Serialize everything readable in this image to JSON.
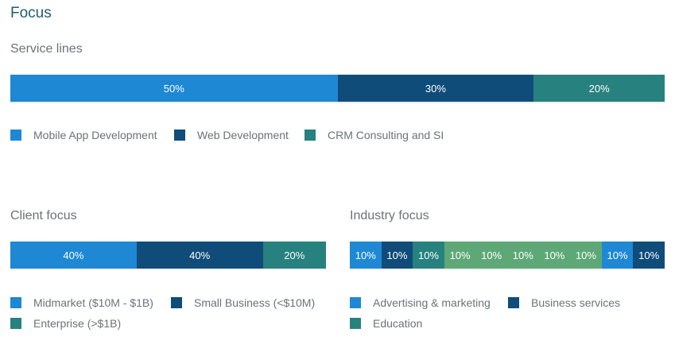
{
  "page": {
    "title": "Focus"
  },
  "colors": {
    "light_blue": "#1e88d4",
    "dark_blue": "#0f4c7a",
    "teal": "#27817e",
    "green": "#5ea877"
  },
  "service_lines": {
    "title": "Service lines",
    "segments": [
      {
        "label": "50%",
        "value": 50,
        "color": "#1e88d4"
      },
      {
        "label": "30%",
        "value": 30,
        "color": "#0f4c7a"
      },
      {
        "label": "20%",
        "value": 20,
        "color": "#27817e"
      }
    ],
    "legend": [
      {
        "label": "Mobile App Development",
        "color": "#1e88d4"
      },
      {
        "label": "Web Development",
        "color": "#0f4c7a"
      },
      {
        "label": "CRM Consulting and SI",
        "color": "#27817e"
      }
    ]
  },
  "client_focus": {
    "title": "Client focus",
    "segments": [
      {
        "label": "40%",
        "value": 40,
        "color": "#1e88d4"
      },
      {
        "label": "40%",
        "value": 40,
        "color": "#0f4c7a"
      },
      {
        "label": "20%",
        "value": 20,
        "color": "#27817e"
      }
    ],
    "legend": [
      {
        "label": "Midmarket ($10M - $1B)",
        "color": "#1e88d4"
      },
      {
        "label": "Small Business (<$10M)",
        "color": "#0f4c7a"
      },
      {
        "label": "Enterprise (>$1B)",
        "color": "#27817e"
      }
    ]
  },
  "industry_focus": {
    "title": "Industry focus",
    "segments": [
      {
        "label": "10%",
        "value": 10,
        "color": "#1e88d4"
      },
      {
        "label": "10%",
        "value": 10,
        "color": "#0f4c7a"
      },
      {
        "label": "10%",
        "value": 10,
        "color": "#27817e"
      },
      {
        "label": "10%",
        "value": 10,
        "color": "#5ea877"
      },
      {
        "label": "10%",
        "value": 10,
        "color": "#5ea877"
      },
      {
        "label": "10%",
        "value": 10,
        "color": "#5ea877"
      },
      {
        "label": "10%",
        "value": 10,
        "color": "#5ea877"
      },
      {
        "label": "10%",
        "value": 10,
        "color": "#5ea877"
      },
      {
        "label": "10%",
        "value": 10,
        "color": "#1e88d4"
      },
      {
        "label": "10%",
        "value": 10,
        "color": "#0f4c7a"
      }
    ],
    "legend": [
      {
        "label": "Advertising & marketing",
        "color": "#1e88d4"
      },
      {
        "label": "Business services",
        "color": "#0f4c7a"
      },
      {
        "label": "Education",
        "color": "#27817e"
      }
    ]
  }
}
